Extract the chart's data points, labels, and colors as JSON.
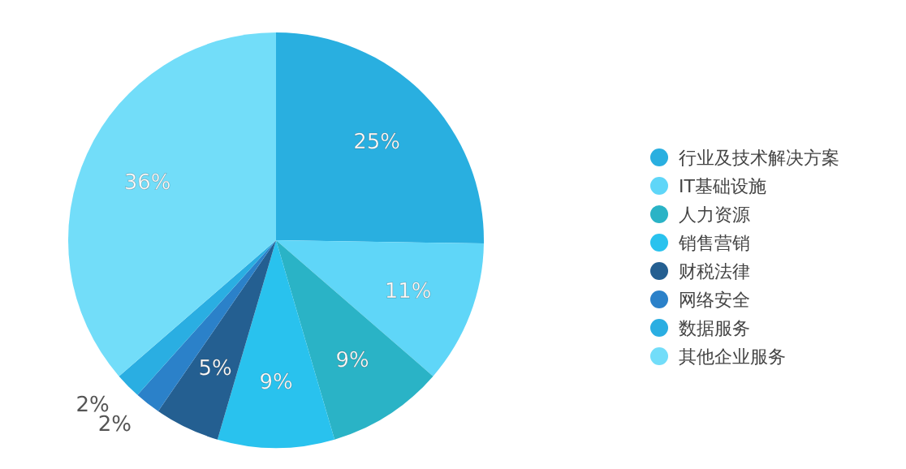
{
  "chart_data": {
    "type": "pie",
    "categories": [
      "行业及技术解决方案",
      "IT基础设施",
      "人力资源",
      "销售营销",
      "财税法律",
      "网络安全",
      "数据服务",
      "其他企业服务"
    ],
    "values": [
      25,
      11,
      9,
      9,
      5,
      2,
      2,
      36
    ],
    "colors": [
      "#29afe0",
      "#5fd6f8",
      "#2ab3c6",
      "#29c2ee",
      "#245f91",
      "#2b81c9",
      "#2aaee2",
      "#72ddf9"
    ],
    "value_labels": [
      "25%",
      "11%",
      "9%",
      "9%",
      "5%",
      "2%",
      "2%",
      "36%"
    ],
    "legend": "right"
  }
}
